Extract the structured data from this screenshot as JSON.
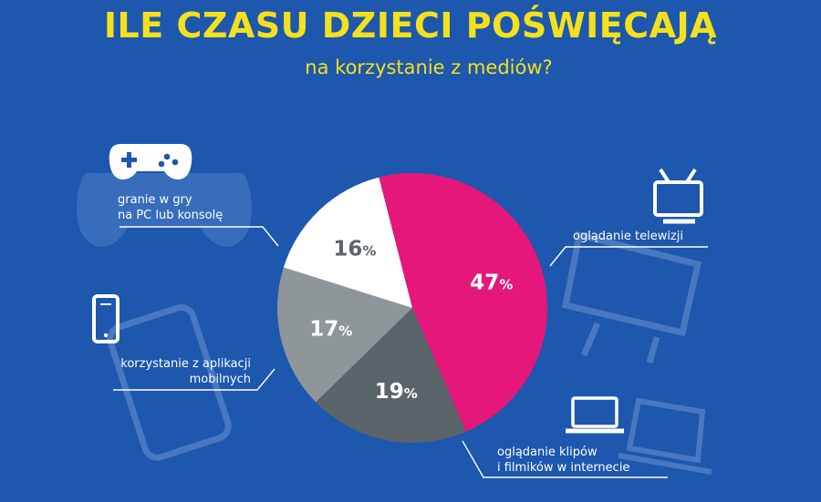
{
  "header": {
    "title": "ILE CZASU DZIECI POŚWIĘCAJĄ",
    "subtitle": "na korzystanie z mediów?"
  },
  "labels": {
    "games": [
      "granie w gry",
      "na PC lub konsolę"
    ],
    "tv": [
      "oglądanie telewizji"
    ],
    "mobile": [
      "korzystanie z aplikacji",
      "mobilnych"
    ],
    "clips": [
      "oglądanie klipów",
      "i filmików w internecie"
    ]
  },
  "icons": {
    "games": "gamepad-icon",
    "tv": "tv-icon",
    "mobile": "smartphone-icon",
    "clips": "laptop-icon"
  },
  "colors": {
    "background": "#1d57ae",
    "title": "#f4e01c",
    "tv": "#e5177b",
    "clips": "#5b6468",
    "mobile": "#8f9699",
    "games": "#ffffff",
    "text": "#ffffff"
  },
  "chart_data": {
    "type": "pie",
    "unit": "%",
    "slices": [
      {
        "label": "oglądanie telewizji",
        "value": 47,
        "display": "47",
        "color": "#e5177b",
        "text_color": "#ffffff"
      },
      {
        "label": "oglądanie klipów i filmików w internecie",
        "value": 19,
        "display": "19",
        "color": "#5b6468",
        "text_color": "#ffffff"
      },
      {
        "label": "korzystanie z aplikacji mobilnych",
        "value": 17,
        "display": "17",
        "color": "#8f9699",
        "text_color": "#ffffff"
      },
      {
        "label": "granie w gry na PC lub konsolę",
        "value": 16,
        "display": "16",
        "color": "#ffffff",
        "text_color": "#5b6468"
      }
    ]
  }
}
